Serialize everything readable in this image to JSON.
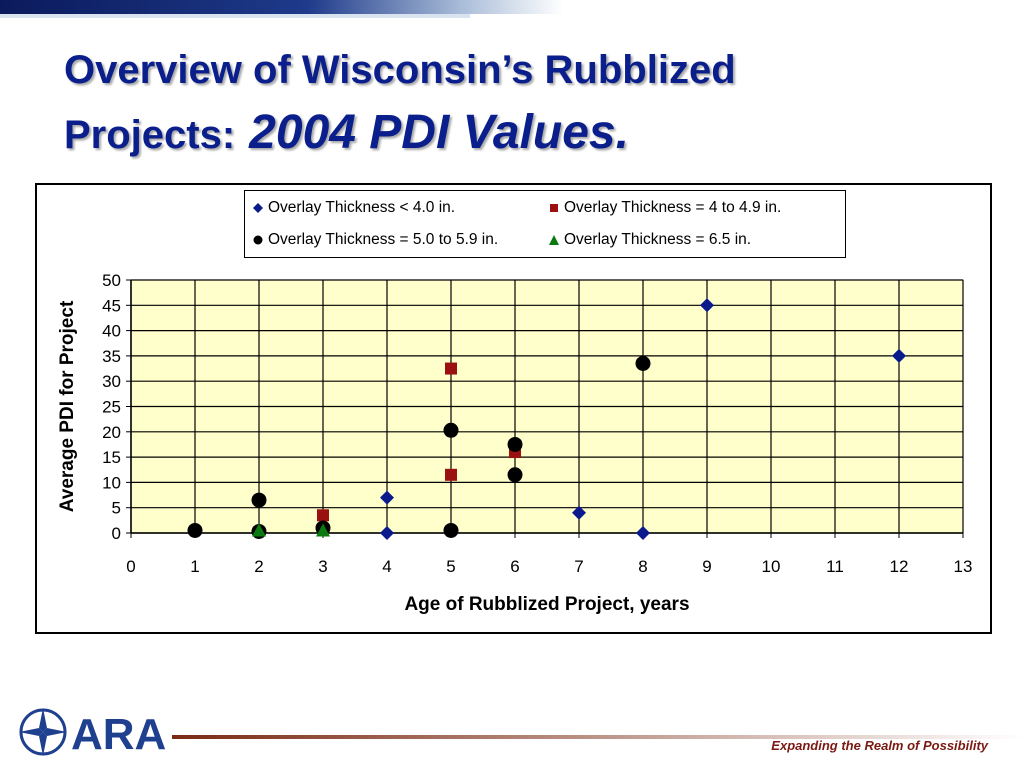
{
  "slide": {
    "title_line1": "Overview of Wisconsin’s Rubblized",
    "title_line2": "Projects:",
    "title_sub": "2004 PDI Values.",
    "tagline": "Expanding the Realm of Possibility",
    "logo_text": "ARA",
    "colors": {
      "title": "#0a1e8c",
      "tagline": "#7a1a12",
      "plot_bg": "#ffffcc"
    }
  },
  "chart_data": {
    "type": "scatter",
    "xlabel": "Age of Rubblized Project, years",
    "ylabel": "Average PDI for Project",
    "xlim": [
      0,
      13
    ],
    "ylim": [
      0,
      50
    ],
    "x_ticks": [
      0,
      1,
      2,
      3,
      4,
      5,
      6,
      7,
      8,
      9,
      10,
      11,
      12,
      13
    ],
    "y_ticks": [
      0,
      5,
      10,
      15,
      20,
      25,
      30,
      35,
      40,
      45,
      50
    ],
    "grid": true,
    "legend_position": "top",
    "series": [
      {
        "name": "Overlay Thickness < 4.0 in.",
        "marker": "diamond",
        "color": "#0a1a8c",
        "points": [
          [
            4,
            7
          ],
          [
            4,
            0
          ],
          [
            7,
            4
          ],
          [
            8,
            0
          ],
          [
            9,
            45
          ],
          [
            12,
            35
          ]
        ]
      },
      {
        "name": "Overlay Thickness = 4 to 4.9 in.",
        "marker": "square",
        "color": "#9b1010",
        "points": [
          [
            3,
            3.5
          ],
          [
            5,
            32.5
          ],
          [
            5,
            11.5
          ],
          [
            6,
            16
          ]
        ]
      },
      {
        "name": "Overlay Thickness = 5.0 to 5.9 in.",
        "marker": "circle",
        "color": "#000000",
        "points": [
          [
            1,
            0.5
          ],
          [
            2,
            6.5
          ],
          [
            2,
            0.3
          ],
          [
            3,
            1
          ],
          [
            5,
            20.3
          ],
          [
            5,
            0.5
          ],
          [
            6,
            17.5
          ],
          [
            6,
            11.5
          ],
          [
            8,
            33.5
          ]
        ]
      },
      {
        "name": "Overlay Thickness = 6.5 in.",
        "marker": "triangle",
        "color": "#0a7a10",
        "points": [
          [
            2,
            0.3
          ],
          [
            3,
            0.3
          ]
        ]
      }
    ]
  }
}
